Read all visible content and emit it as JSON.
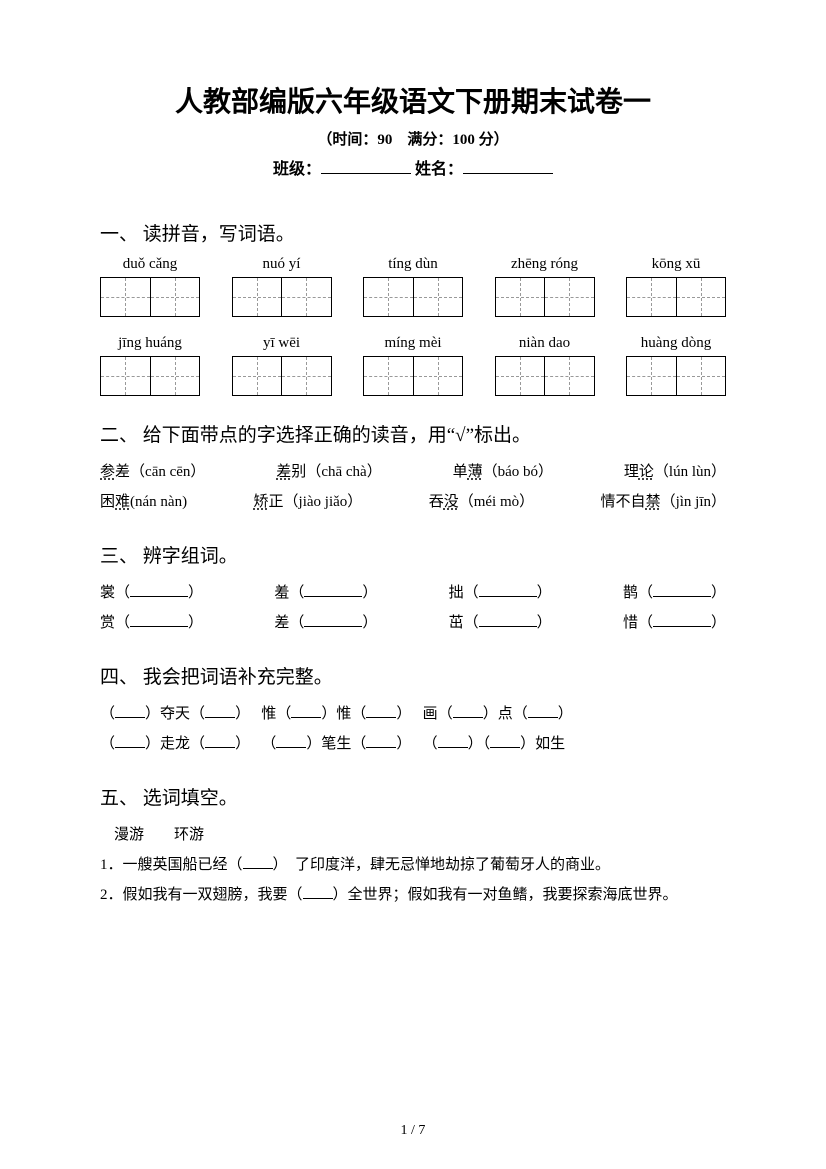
{
  "title": "人教部编版六年级语文下册期末试卷一",
  "subtitle": "（时间：90　满分：100 分）",
  "classLabel": "班级：",
  "nameLabel": "姓名：",
  "section1": {
    "heading": "一、 读拼音，写词语。",
    "row1": [
      "duǒ cǎng",
      "nuó yí",
      "tíng dùn",
      "zhēng róng",
      "kōng xū"
    ],
    "row2": [
      "jīng huáng",
      "yī wēi",
      "míng mèi",
      "niàn dao",
      "huàng dòng"
    ]
  },
  "section2": {
    "heading": "二、 给下面带点的字选择正确的读音，用“√”标出。",
    "items": [
      {
        "char": "参",
        "rest": "差",
        "pinyin": "（cān cēn）"
      },
      {
        "char": "差",
        "rest": "别",
        "pinyin": "（chā chà）"
      },
      {
        "char": "",
        "rest": "单",
        "char2": "薄",
        "pinyin": "（báo bó）"
      },
      {
        "char": "",
        "rest": "理",
        "char2": "论",
        "pinyin": "（lún lùn）"
      },
      {
        "char": "",
        "rest": "困",
        "char2": "难",
        "pinyin": "(nán nàn)"
      },
      {
        "char": "矫",
        "rest": "正",
        "pinyin": "（jiào jiǎo）"
      },
      {
        "char": "",
        "rest": "吞",
        "char2": "没",
        "pinyin": "（méi mò）"
      },
      {
        "char": "",
        "rest": "情不自",
        "char2": "禁",
        "pinyin": "（jìn jīn）"
      }
    ]
  },
  "section3": {
    "heading": "三、 辨字组词。",
    "row1": [
      "裳",
      "羞",
      "拙",
      "鹊"
    ],
    "row2": [
      "赏",
      "差",
      "茁",
      "惜"
    ]
  },
  "section4": {
    "heading": "四、 我会把词语补充完整。",
    "line1": [
      "夺天",
      "惟",
      "惟",
      "画",
      "点"
    ],
    "line2": [
      "走龙",
      "笔生",
      "如生"
    ]
  },
  "section5": {
    "heading": "五、 选词填空。",
    "words": "漫游　　环游",
    "q1": "1．一艘英国船已经（",
    "q1b": "）　了印度洋，肆无忌惮地劫掠了葡萄牙人的商业。",
    "q2": "2．假如我有一双翅膀，我要（",
    "q2b": "）全世界；假如我有一对鱼鳍，我要探索海底世界。"
  },
  "pageNum": "1 / 7"
}
